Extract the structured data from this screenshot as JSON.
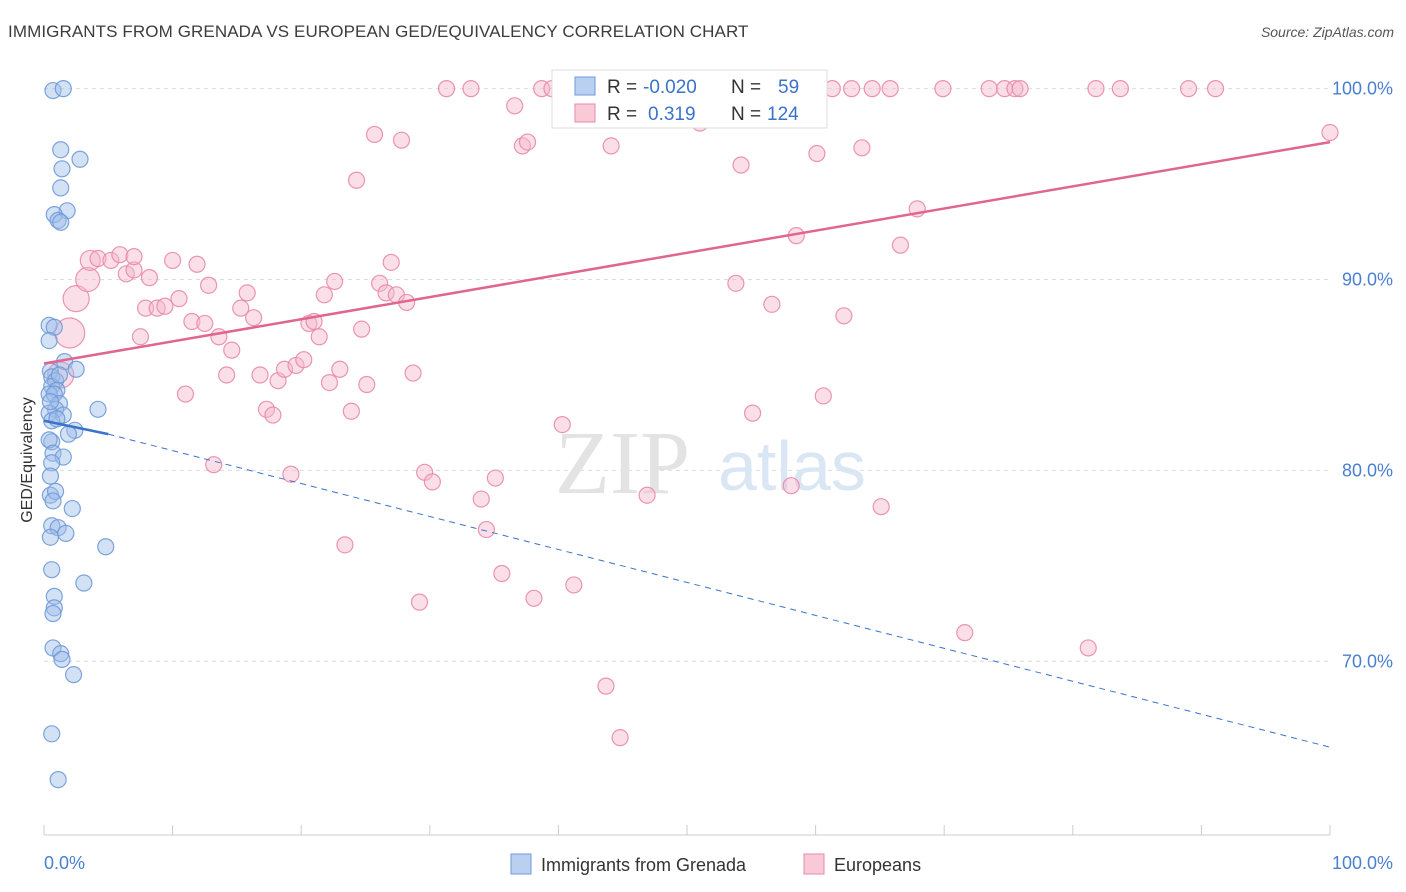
{
  "title": "IMMIGRANTS FROM GRENADA VS EUROPEAN GED/EQUIVALENCY CORRELATION CHART",
  "source": "Source: ZipAtlas.com",
  "watermark": {
    "zip": "ZIP",
    "atlas": "atlas"
  },
  "colors": {
    "blue_fill": "#9dbce8",
    "blue_stroke": "#6f9ad8",
    "blue_line": "#3a73c9",
    "pink_fill": "#f5b8cb",
    "pink_stroke": "#e98aa9",
    "pink_line": "#e0658f",
    "grid": "#dcdcdc",
    "tick_label": "#4a7fd0"
  },
  "legend": {
    "r_label": "R =",
    "n_label": "N =",
    "rows": [
      {
        "r": "-0.020",
        "n": "59"
      },
      {
        "r": "0.319",
        "n": "124"
      }
    ]
  },
  "chart_data": {
    "type": "scatter",
    "ylabel": "GED/Equivalency",
    "xlim": [
      0,
      100
    ],
    "ylim": [
      60.9,
      101.5
    ],
    "x_tick_labels": [
      "0.0%",
      "100.0%"
    ],
    "y_ticks": [
      {
        "value": 70,
        "label": "70.0%"
      },
      {
        "value": 80,
        "label": "80.0%"
      },
      {
        "value": 90,
        "label": "90.0%"
      },
      {
        "value": 100,
        "label": "100.0%"
      }
    ],
    "grid": true,
    "series": [
      {
        "name": "Immigrants from Grenada",
        "color": "#9dbce8",
        "trend": {
          "solid": [
            [
              0,
              82.6
            ],
            [
              5,
              81.9
            ]
          ],
          "dashed": [
            [
              5,
              81.9
            ],
            [
              100,
              65.5
            ]
          ]
        },
        "points": [
          [
            0.7,
            99.9
          ],
          [
            1.5,
            100.0
          ],
          [
            1.3,
            96.8
          ],
          [
            2.8,
            96.3
          ],
          [
            1.4,
            95.8
          ],
          [
            1.3,
            94.8
          ],
          [
            1.8,
            93.6
          ],
          [
            0.8,
            93.4
          ],
          [
            1.1,
            93.1
          ],
          [
            1.3,
            93.0
          ],
          [
            0.4,
            87.6
          ],
          [
            0.8,
            87.5
          ],
          [
            0.4,
            86.8
          ],
          [
            1.6,
            85.7
          ],
          [
            0.5,
            85.2
          ],
          [
            2.5,
            85.3
          ],
          [
            0.6,
            84.9
          ],
          [
            0.9,
            84.7
          ],
          [
            0.6,
            84.4
          ],
          [
            1.0,
            84.2
          ],
          [
            0.4,
            84.0
          ],
          [
            0.8,
            84.0
          ],
          [
            1.2,
            83.5
          ],
          [
            0.9,
            83.2
          ],
          [
            4.2,
            83.2
          ],
          [
            0.4,
            83.0
          ],
          [
            1.5,
            82.9
          ],
          [
            0.6,
            82.6
          ],
          [
            1.0,
            82.7
          ],
          [
            2.4,
            82.1
          ],
          [
            1.9,
            81.9
          ],
          [
            0.6,
            81.5
          ],
          [
            0.4,
            81.6
          ],
          [
            0.7,
            80.9
          ],
          [
            1.5,
            80.7
          ],
          [
            0.6,
            80.4
          ],
          [
            0.5,
            79.7
          ],
          [
            0.5,
            78.7
          ],
          [
            0.9,
            78.9
          ],
          [
            0.7,
            78.4
          ],
          [
            2.2,
            78.0
          ],
          [
            0.6,
            77.1
          ],
          [
            1.1,
            77.0
          ],
          [
            1.7,
            76.7
          ],
          [
            0.5,
            76.5
          ],
          [
            4.8,
            76.0
          ],
          [
            0.6,
            74.8
          ],
          [
            3.1,
            74.1
          ],
          [
            0.8,
            73.4
          ],
          [
            0.8,
            72.8
          ],
          [
            0.7,
            72.5
          ],
          [
            0.7,
            70.7
          ],
          [
            1.3,
            70.4
          ],
          [
            1.4,
            70.1
          ],
          [
            2.3,
            69.3
          ],
          [
            0.6,
            66.2
          ],
          [
            1.1,
            63.8
          ],
          [
            0.5,
            83.6
          ],
          [
            1.2,
            85.0
          ]
        ]
      },
      {
        "name": "Europeans",
        "color": "#f5b8cb",
        "trend": {
          "solid": [
            [
              0,
              85.6
            ],
            [
              100,
              97.2
            ]
          ]
        },
        "points": [
          [
            1.3,
            85.0
          ],
          [
            2.0,
            87.2
          ],
          [
            2.5,
            89.0
          ],
          [
            3.4,
            90.0
          ],
          [
            3.6,
            91.0
          ],
          [
            4.2,
            91.1
          ],
          [
            5.2,
            91.0
          ],
          [
            5.9,
            91.3
          ],
          [
            6.4,
            90.3
          ],
          [
            7.0,
            90.5
          ],
          [
            7.5,
            87.0
          ],
          [
            7.9,
            88.5
          ],
          [
            8.2,
            90.1
          ],
          [
            8.8,
            88.5
          ],
          [
            9.4,
            88.6
          ],
          [
            10.0,
            91.0
          ],
          [
            10.5,
            89.0
          ],
          [
            11.0,
            84.0
          ],
          [
            11.5,
            87.8
          ],
          [
            11.9,
            90.8
          ],
          [
            12.5,
            87.7
          ],
          [
            12.8,
            89.7
          ],
          [
            13.2,
            80.3
          ],
          [
            13.6,
            87.0
          ],
          [
            14.2,
            85.0
          ],
          [
            14.6,
            86.3
          ],
          [
            15.3,
            88.5
          ],
          [
            15.8,
            89.3
          ],
          [
            16.3,
            88.0
          ],
          [
            16.8,
            85.0
          ],
          [
            17.3,
            83.2
          ],
          [
            17.8,
            82.9
          ],
          [
            18.2,
            84.7
          ],
          [
            18.7,
            85.3
          ],
          [
            19.2,
            79.8
          ],
          [
            19.6,
            85.5
          ],
          [
            20.2,
            85.8
          ],
          [
            20.6,
            87.7
          ],
          [
            21.0,
            87.8
          ],
          [
            21.4,
            87.0
          ],
          [
            21.8,
            89.2
          ],
          [
            22.2,
            84.6
          ],
          [
            22.6,
            89.9
          ],
          [
            23.0,
            85.3
          ],
          [
            23.4,
            76.1
          ],
          [
            23.9,
            83.1
          ],
          [
            24.3,
            95.2
          ],
          [
            24.7,
            87.4
          ],
          [
            25.1,
            84.5
          ],
          [
            25.7,
            97.6
          ],
          [
            26.1,
            89.8
          ],
          [
            26.6,
            89.3
          ],
          [
            27.0,
            90.9
          ],
          [
            27.4,
            89.2
          ],
          [
            27.8,
            97.3
          ],
          [
            28.2,
            88.8
          ],
          [
            28.7,
            85.1
          ],
          [
            29.2,
            73.1
          ],
          [
            29.6,
            79.9
          ],
          [
            30.2,
            79.4
          ],
          [
            31.3,
            100.0
          ],
          [
            33.2,
            100.0
          ],
          [
            34.0,
            78.5
          ],
          [
            34.4,
            76.9
          ],
          [
            35.1,
            79.6
          ],
          [
            35.6,
            74.6
          ],
          [
            36.6,
            99.1
          ],
          [
            37.2,
            97.0
          ],
          [
            37.6,
            97.2
          ],
          [
            38.1,
            73.3
          ],
          [
            38.7,
            100.0
          ],
          [
            39.5,
            100.0
          ],
          [
            40.3,
            82.4
          ],
          [
            41.2,
            74.0
          ],
          [
            41.8,
            100.0
          ],
          [
            42.6,
            100.0
          ],
          [
            43.7,
            68.7
          ],
          [
            44.1,
            97.0
          ],
          [
            44.8,
            66.0
          ],
          [
            45.4,
            100.0
          ],
          [
            46.2,
            100.0
          ],
          [
            46.9,
            78.7
          ],
          [
            47.6,
            100.0
          ],
          [
            48.1,
            100.0
          ],
          [
            48.8,
            100.0
          ],
          [
            49.5,
            100.0
          ],
          [
            50.2,
            100.0
          ],
          [
            51.0,
            98.2
          ],
          [
            51.8,
            100.0
          ],
          [
            52.6,
            100.0
          ],
          [
            53.4,
            100.0
          ],
          [
            53.8,
            89.8
          ],
          [
            54.2,
            96.0
          ],
          [
            55.1,
            83.0
          ],
          [
            55.9,
            100.0
          ],
          [
            56.6,
            88.7
          ],
          [
            57.3,
            100.0
          ],
          [
            58.1,
            79.2
          ],
          [
            58.5,
            92.3
          ],
          [
            59.2,
            100.0
          ],
          [
            60.1,
            96.6
          ],
          [
            60.6,
            83.9
          ],
          [
            61.3,
            100.0
          ],
          [
            62.2,
            88.1
          ],
          [
            62.8,
            100.0
          ],
          [
            63.6,
            96.9
          ],
          [
            64.4,
            100.0
          ],
          [
            65.1,
            78.1
          ],
          [
            65.8,
            100.0
          ],
          [
            66.6,
            91.8
          ],
          [
            67.9,
            93.7
          ],
          [
            69.9,
            100.0
          ],
          [
            71.6,
            71.5
          ],
          [
            73.5,
            100.0
          ],
          [
            74.7,
            100.0
          ],
          [
            75.5,
            100.0
          ],
          [
            75.9,
            100.0
          ],
          [
            81.2,
            70.7
          ],
          [
            81.8,
            100.0
          ],
          [
            83.7,
            100.0
          ],
          [
            89.0,
            100.0
          ],
          [
            91.1,
            100.0
          ],
          [
            100.0,
            97.7
          ],
          [
            7.0,
            91.2
          ]
        ]
      }
    ]
  }
}
